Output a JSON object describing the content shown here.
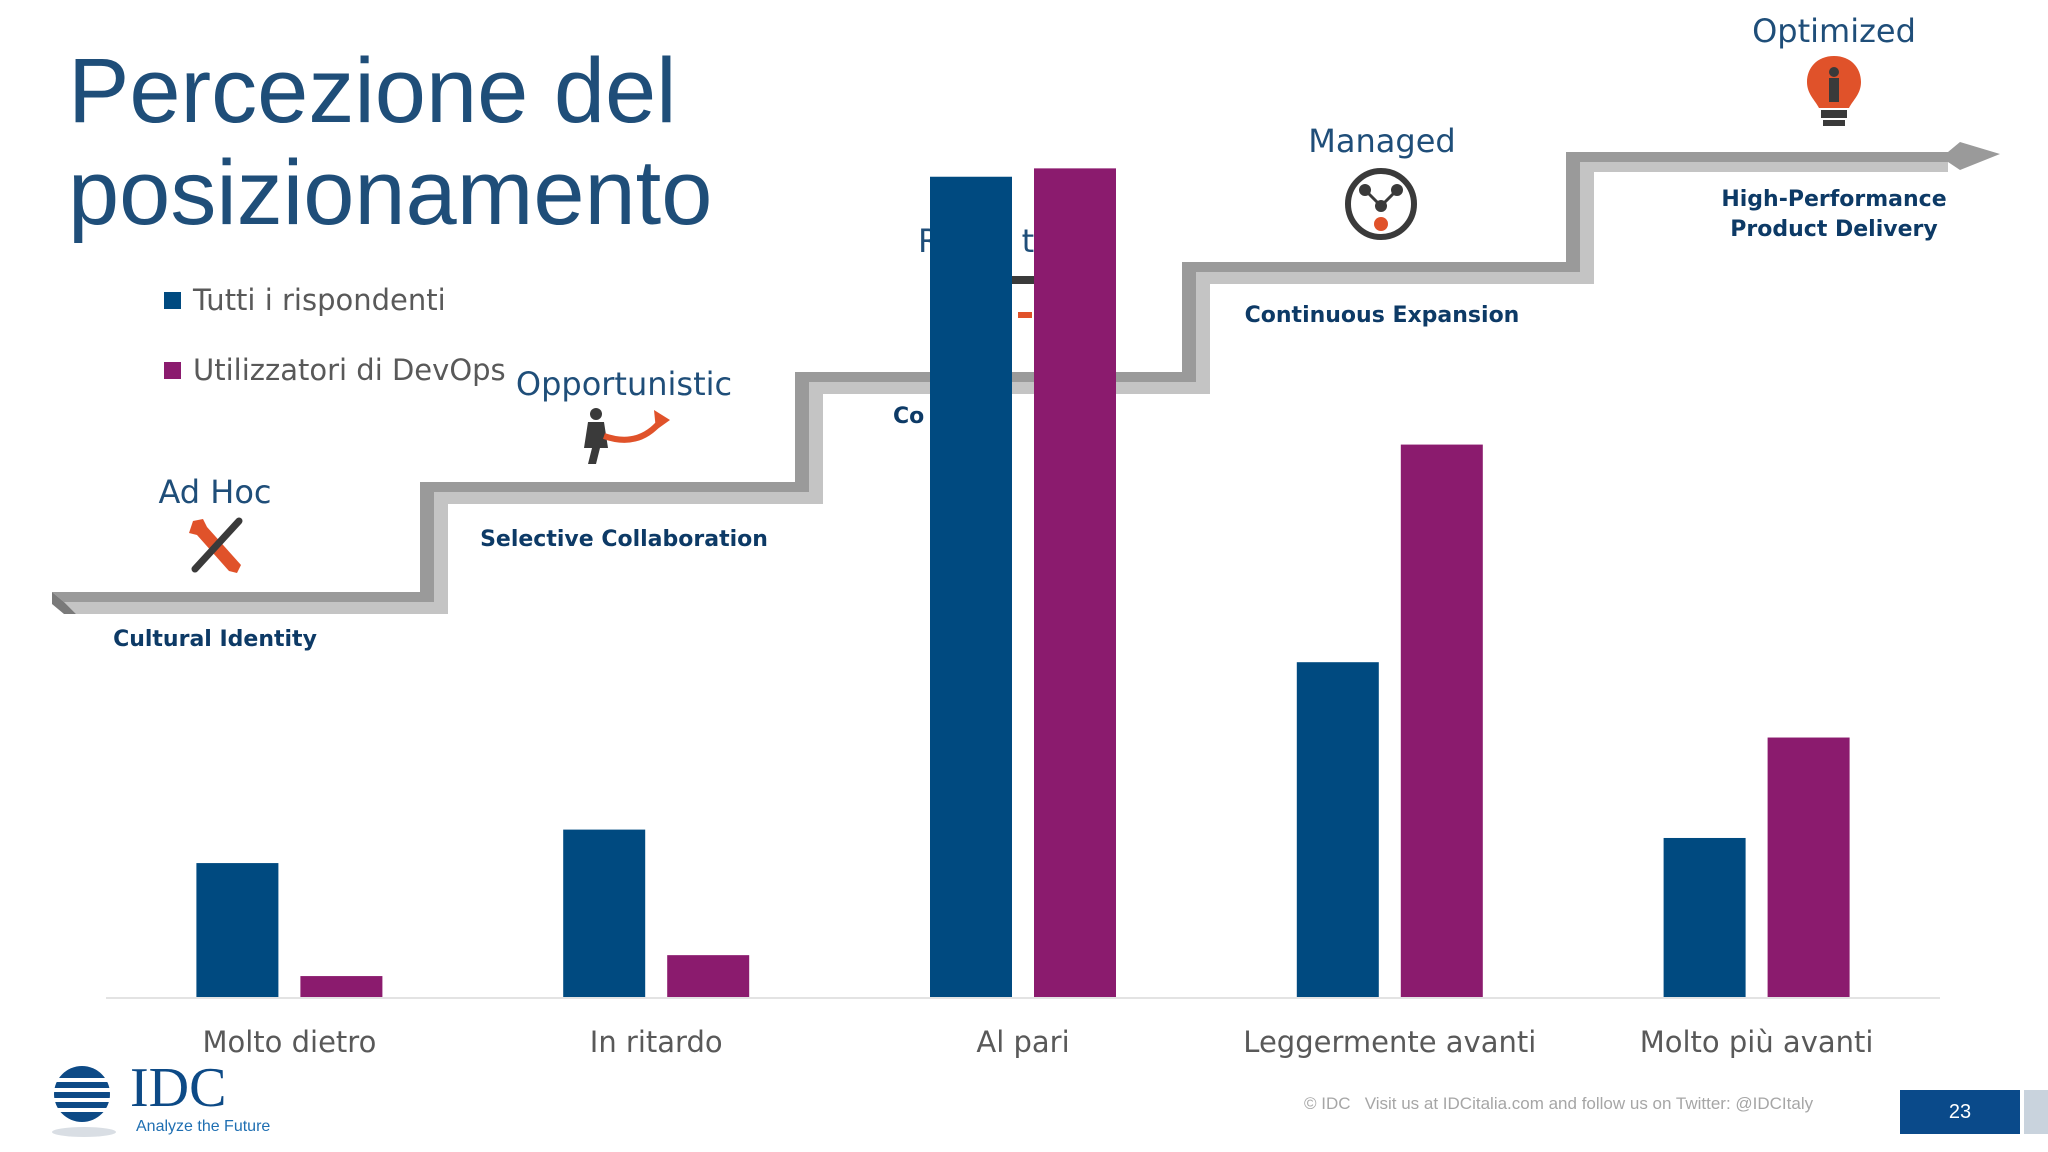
{
  "slide": {
    "title_line1": "Percezione del",
    "title_line2": "posizionamento",
    "page_number": "23",
    "footer": "© IDC   Visit us at IDCitalia.com and follow us on Twitter: @IDCItaly",
    "logo_text": "IDC",
    "logo_tagline": "Analyze the Future"
  },
  "maturity": {
    "steps": [
      {
        "name": "Ad Hoc",
        "caption": "Cultural Identity",
        "icon": "tools-icon"
      },
      {
        "name": "Opportunistic",
        "caption": "Selective Collaboration",
        "icon": "tug-of-war-icon"
      },
      {
        "name": "Repeatable",
        "caption": "Core Standards",
        "icon": "process-icon"
      },
      {
        "name": "Managed",
        "caption": "Continuous Expansion",
        "icon": "network-icon"
      },
      {
        "name": "Optimized",
        "caption": "High-Performance Product Delivery",
        "icon": "lightbulb-icon"
      }
    ],
    "visible_fragments": {
      "repeatable": "R        ta",
      "core_standards": "Co        St"
    },
    "colors": {
      "stair": "#8c8c8c",
      "label": "#1f4e79",
      "icon_accent": "#e0522a"
    }
  },
  "chart_data": {
    "type": "bar",
    "categories": [
      "Molto dietro",
      "In ritardo",
      "Al pari",
      "Leggermente avanti",
      "Molto più avanti"
    ],
    "series": [
      {
        "name": "Tutti i rispondenti",
        "color": "#004a80",
        "values": [
          16,
          20,
          98,
          40,
          19
        ]
      },
      {
        "name": "Utilizzatori di DevOps",
        "color": "#8b1b6e",
        "values": [
          2.5,
          5,
          99,
          66,
          31
        ]
      }
    ],
    "ylim": [
      0,
      100
    ],
    "grid": false,
    "legend_position": "top-left"
  }
}
